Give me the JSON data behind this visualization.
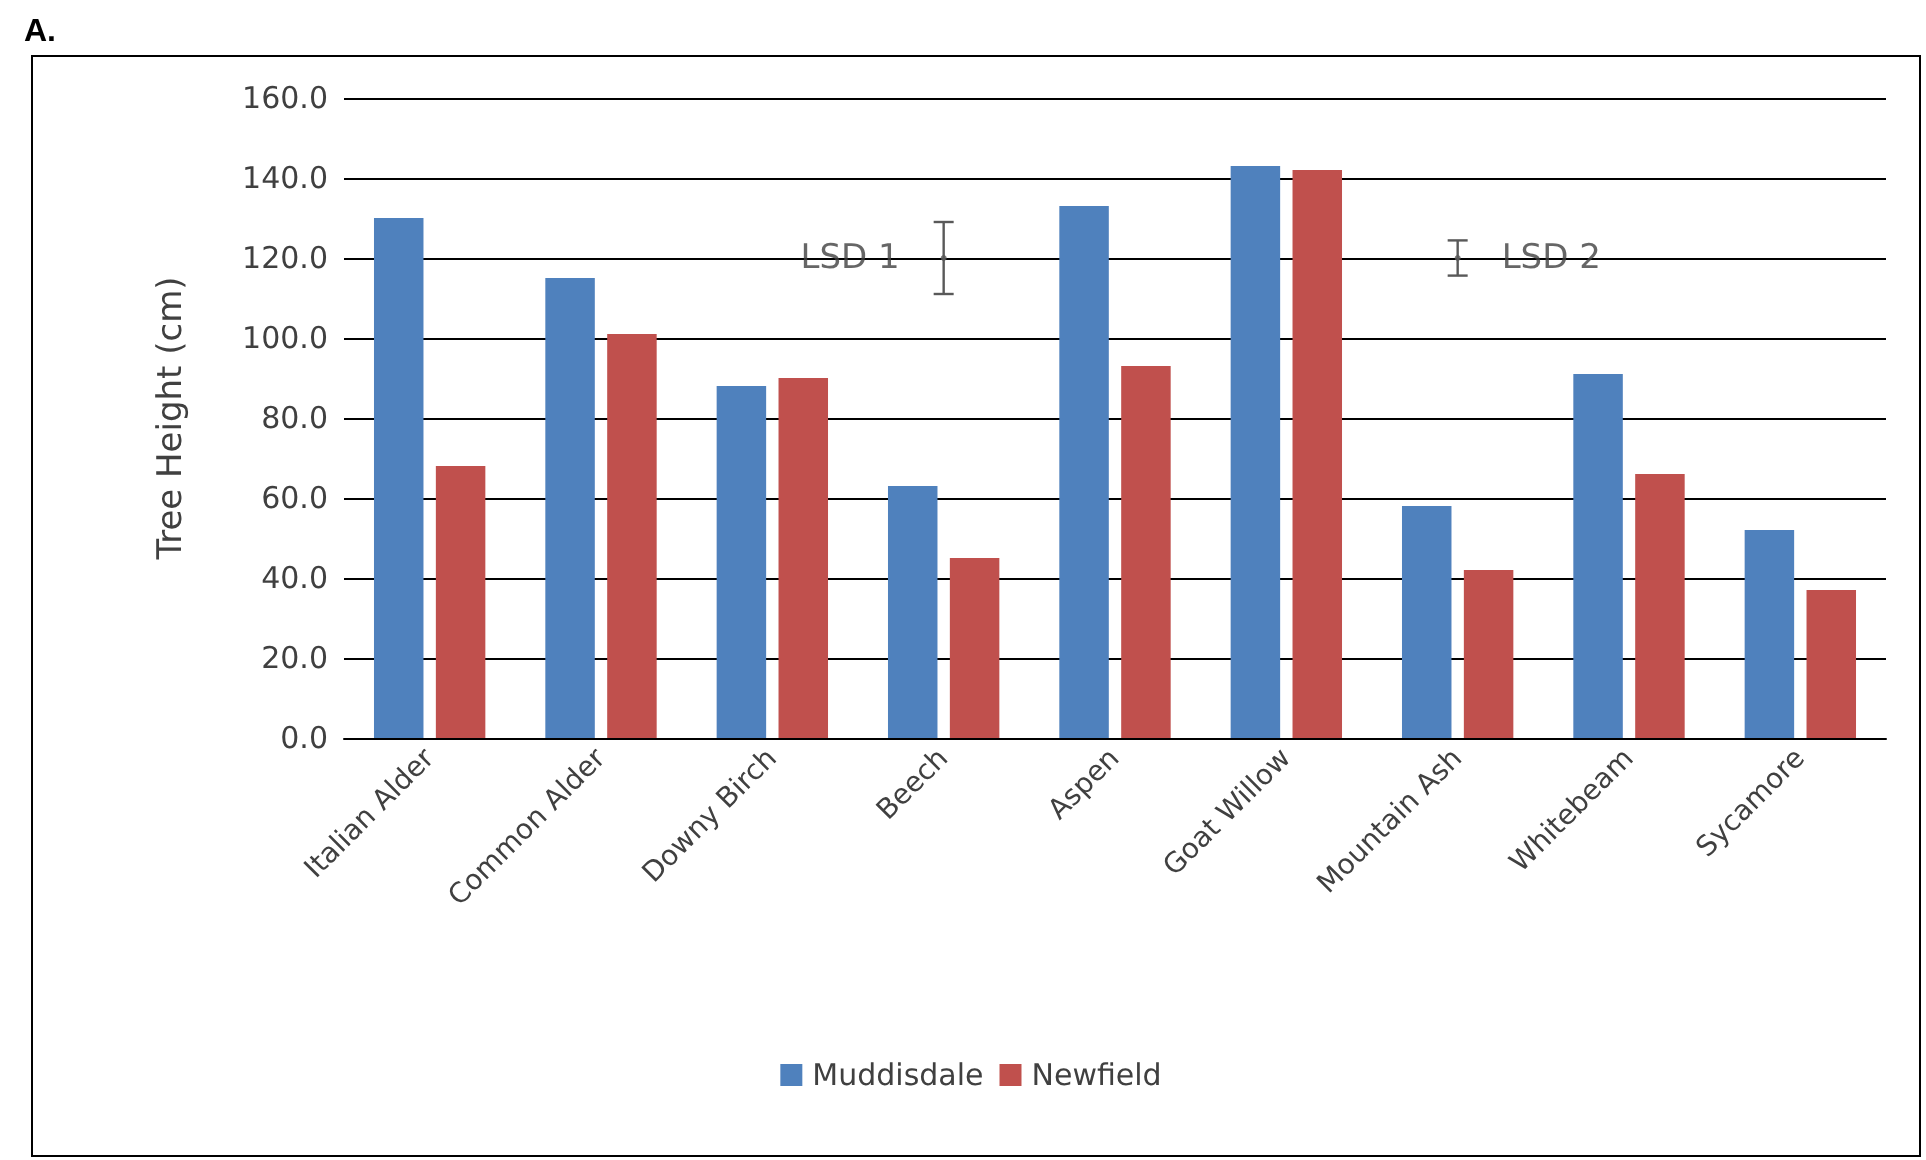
{
  "chart_data": {
    "type": "bar",
    "ylabel": "Tree Height (cm)",
    "categories": [
      "Italian Alder",
      "Common Alder",
      "Downy Birch",
      "Beech",
      "Aspen",
      "Goat Willow",
      "Mountain Ash",
      "Whitebeam",
      "Sycamore"
    ],
    "series": [
      {
        "name": "Muddisdale",
        "color": "#4f81bd",
        "values": [
          130,
          115,
          88,
          63,
          133,
          143,
          58,
          91,
          52
        ]
      },
      {
        "name": "Newfield",
        "color": "#c0504d",
        "values": [
          68,
          101,
          90,
          45,
          93,
          142,
          42,
          66,
          37
        ]
      },
      {
        "type": "scatter",
        "color": "#595959",
        "x": [
          "Beech",
          "Mountain Ash"
        ],
        "values": [
          120,
          120
        ],
        "errors": [
          9,
          4.4
        ]
      }
    ],
    "annotations": [
      "A.",
      {
        "text": "LSD 1",
        "x": "Beech",
        "y": 120
      },
      {
        "text": "LSD 2",
        "x": "Mountain Ash",
        "y": 120
      }
    ],
    "ylim": [
      0,
      160
    ],
    "yticks": [
      {
        "value": 0,
        "label": "0.0"
      },
      {
        "value": 20,
        "label": "20.0"
      },
      {
        "value": 40,
        "label": "40.0"
      },
      {
        "value": 60,
        "label": "60.0"
      },
      {
        "value": 80,
        "label": "80.0"
      },
      {
        "value": 100,
        "label": "100.0"
      },
      {
        "value": 120,
        "label": "120.0"
      },
      {
        "value": 140,
        "label": "140.0"
      },
      {
        "value": 160,
        "label": "160.0"
      }
    ],
    "grid": "y",
    "legend": "bottom"
  }
}
